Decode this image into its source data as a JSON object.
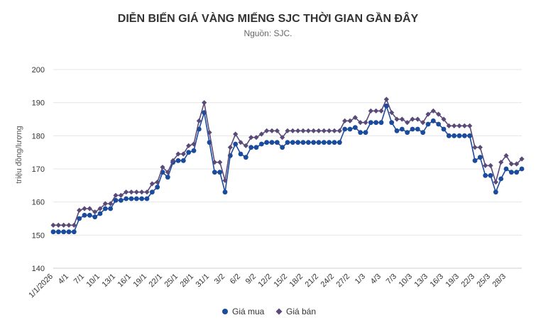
{
  "chart_data": {
    "type": "line",
    "title": "DIỄN BIẾN GIÁ VÀNG MIẾNG SJC THỜI GIAN GẦN ĐÂY",
    "subtitle": "Nguồn: SJC.",
    "xlabel": "",
    "ylabel": "triệu đồng/lượng",
    "ylim": [
      140,
      200
    ],
    "yticks": [
      140,
      150,
      160,
      170,
      180,
      190,
      200
    ],
    "grid": true,
    "legend_position": "bottom",
    "x_tick_labels": [
      "1/1/2026",
      "4/1",
      "7/1",
      "10/1",
      "13/1",
      "16/1",
      "19/1",
      "22/1",
      "25/1",
      "28/1",
      "31/1",
      "3/2",
      "6/2",
      "9/2",
      "12/2",
      "15/2",
      "18/2",
      "21/2",
      "24/2",
      "27/2",
      "1/3",
      "4/3",
      "7/3",
      "10/3",
      "13/3",
      "16/3",
      "19/3",
      "22/3",
      "25/3",
      "28/3"
    ],
    "x_tick_every": 3,
    "series": [
      {
        "name": "Giá mua",
        "color": "#1a4b9c",
        "marker": "circle",
        "values": [
          151,
          151,
          151,
          151,
          151,
          155,
          156,
          156,
          155.5,
          156.5,
          158,
          158,
          160.5,
          160.5,
          161,
          161,
          161,
          161,
          161,
          163,
          164.5,
          169,
          167.5,
          172,
          172.5,
          172.5,
          175,
          175.5,
          182,
          187,
          178,
          169,
          169,
          163,
          174,
          177.5,
          174.5,
          173.5,
          176.5,
          176.5,
          177.5,
          178,
          178,
          178,
          176.5,
          178,
          178,
          178,
          178,
          178,
          178,
          178,
          178,
          178,
          178,
          178,
          182,
          182,
          182.5,
          181,
          181,
          184,
          184,
          184,
          189,
          184,
          181.5,
          182,
          181,
          182,
          182,
          181,
          183.5,
          184.5,
          183.5,
          182,
          180,
          180,
          180,
          180,
          180,
          172.5,
          173.5,
          168,
          168,
          163,
          167,
          170,
          169,
          169,
          170
        ]
      },
      {
        "name": "Giá bán",
        "color": "#5a4a78",
        "marker": "diamond",
        "values": [
          153,
          153,
          153,
          153,
          153,
          157.5,
          158,
          158,
          157,
          158,
          159.5,
          159.5,
          162,
          162,
          163,
          163,
          163,
          163,
          163,
          165.5,
          166,
          170.5,
          169,
          172.5,
          174.5,
          174.5,
          177,
          177.5,
          184.5,
          190,
          181,
          172,
          172,
          166.5,
          176.5,
          180.5,
          178,
          177,
          179.5,
          179.5,
          180.5,
          181.5,
          181.5,
          181.5,
          179.5,
          181.5,
          181.5,
          181.5,
          181.5,
          181.5,
          181.5,
          181.5,
          181.5,
          181.5,
          181.5,
          181.5,
          184.5,
          184.5,
          185.5,
          184,
          184,
          187.5,
          187.5,
          187.5,
          191,
          187,
          185,
          185,
          184,
          185,
          185,
          184,
          186.5,
          187.5,
          186.5,
          185,
          183,
          183,
          183,
          183,
          183,
          176.5,
          176.5,
          171,
          171,
          166,
          172,
          174,
          171.5,
          171.5,
          173
        ]
      }
    ]
  }
}
